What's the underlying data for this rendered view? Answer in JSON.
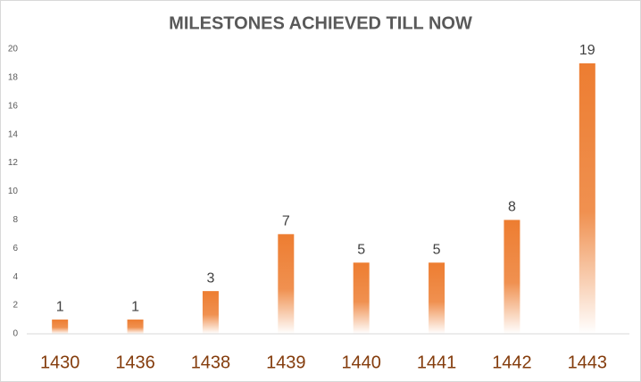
{
  "chart_data": {
    "type": "bar",
    "title": "MILESTONES ACHIEVED TILL NOW",
    "categories": [
      "1430",
      "1436",
      "1438",
      "1439",
      "1440",
      "1441",
      "1442",
      "1443"
    ],
    "values": [
      1,
      1,
      3,
      7,
      5,
      5,
      8,
      19
    ],
    "color": "#ed7d31",
    "ylim": [
      0,
      20
    ],
    "yticks": [
      0,
      2,
      4,
      6,
      8,
      10,
      12,
      14,
      16,
      18,
      20
    ],
    "grid": false
  }
}
